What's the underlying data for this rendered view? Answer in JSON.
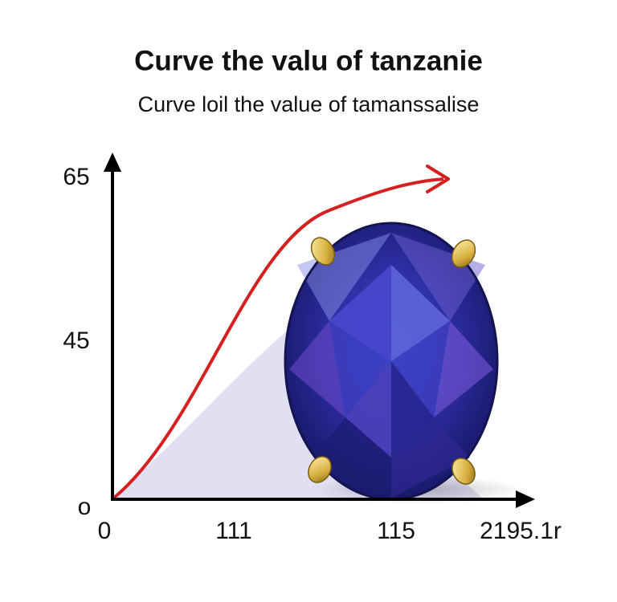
{
  "header": {
    "title": "Curve the valu of tanzanie",
    "subtitle": "Curve loil the value of tamanssalise"
  },
  "axes": {
    "y_labels": [
      "65",
      "45",
      "o"
    ],
    "x_labels": [
      "0",
      "111",
      "115",
      "2195.1r"
    ]
  }
}
